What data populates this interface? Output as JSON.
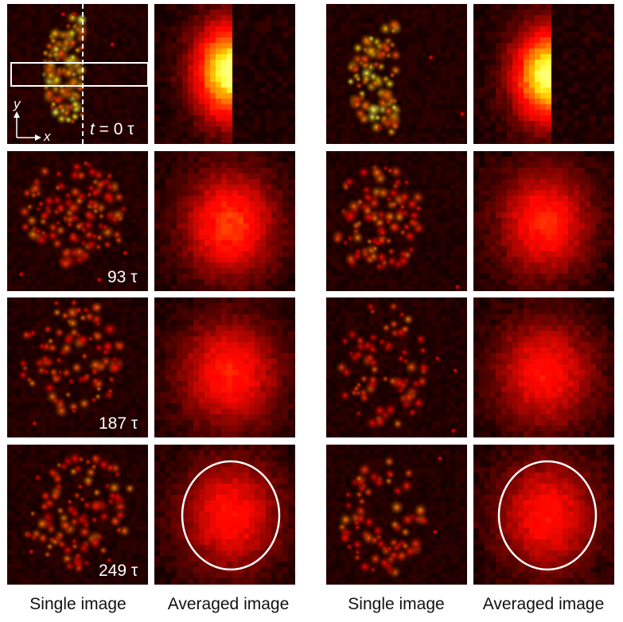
{
  "time_labels": {
    "row0": {
      "var": "t",
      "rest": " = 0 τ"
    },
    "row1": "93 τ",
    "row2": "187 τ",
    "row3": "249 τ"
  },
  "axes": {
    "y": "y",
    "x": "x"
  },
  "column_labels": {
    "left_single": "Single image",
    "left_averaged": "Averaged image",
    "right_single": "Single image",
    "right_averaged": "Averaged image"
  },
  "colors": {
    "background": "#0a0000",
    "marker": "#ffffff"
  }
}
